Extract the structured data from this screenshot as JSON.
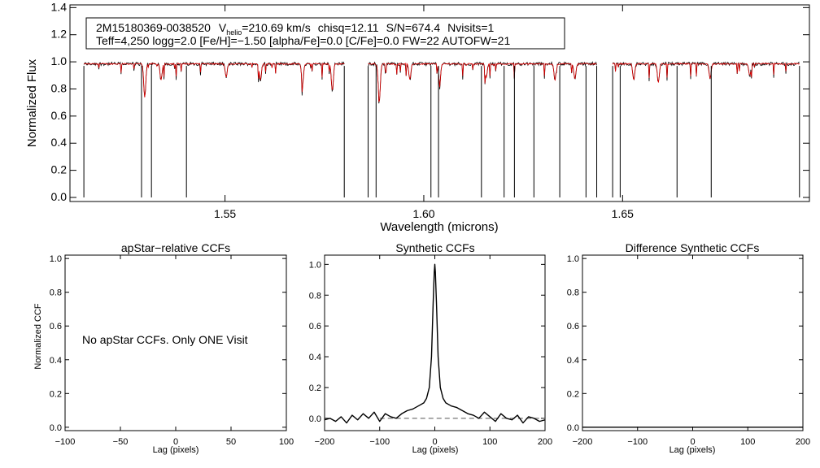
{
  "info_box": {
    "line1": {
      "star_id": "2M15180369-0038520",
      "vhelio_prefix": "V",
      "vhelio_sub": "helio",
      "vhelio_value": "=210.69 km/s",
      "chisq": "chisq=12.11",
      "snr": "S/N=674.4",
      "nvisits": "Nvisits=1"
    },
    "line2": "Teff=4,250 logg=2.0 [Fe/H]=−1.50 [alpha/Fe]=0.0 [C/Fe]=0.0 FW=22 AUTOFW=21"
  },
  "no_ccf_message": "No apStar CCFs.  Only ONE Visit",
  "colors": {
    "observed": "#000000",
    "model": "#dd0000",
    "zero_line": "#555555"
  },
  "chart_data": [
    {
      "type": "line",
      "panel": "spectrum",
      "xlabel": "Wavelength (microns)",
      "ylabel": "Normalized Flux",
      "xlim": [
        1.511,
        1.697
      ],
      "ylim": [
        -0.03,
        1.42
      ],
      "xticks": [
        1.55,
        1.6,
        1.65
      ],
      "xtick_labels": [
        "1.55",
        "1.60",
        "1.65"
      ],
      "yticks": [
        0,
        0.2,
        0.4,
        0.6,
        0.8,
        1.0,
        1.2,
        1.4
      ],
      "ytick_labels": [
        "0.0",
        "0.2",
        "0.4",
        "0.6",
        "0.8",
        "1.0",
        "1.2",
        "1.4"
      ],
      "chips": [
        [
          1.5145,
          1.58
        ],
        [
          1.586,
          1.6435
        ],
        [
          1.6475,
          1.6945
        ]
      ],
      "chip_edges": [
        1.5145,
        1.58,
        1.586,
        1.6435,
        1.6475,
        1.6945
      ],
      "bad_pixels": [
        1.529,
        1.5315,
        1.5403,
        1.588,
        1.6018,
        1.6037,
        1.6145,
        1.6202,
        1.6228,
        1.6277,
        1.6342,
        1.6408,
        1.6494,
        1.6637,
        1.6723
      ],
      "absorption_lines": [
        [
          1.5298,
          0.25
        ],
        [
          1.5339,
          0.12
        ],
        [
          1.5503,
          0.1
        ],
        [
          1.5589,
          0.12
        ],
        [
          1.5695,
          0.15
        ],
        [
          1.577,
          0.2
        ],
        [
          1.5888,
          0.28
        ],
        [
          1.5965,
          0.12
        ],
        [
          1.604,
          0.14
        ],
        [
          1.6157,
          0.1
        ],
        [
          1.633,
          0.12
        ],
        [
          1.638,
          0.11
        ],
        [
          1.6528,
          0.12
        ],
        [
          1.659,
          0.14
        ],
        [
          1.672,
          0.11
        ],
        [
          1.682,
          0.09
        ]
      ],
      "series": [
        {
          "values": "observed flux"
        },
        {
          "values": "model flux"
        }
      ]
    },
    {
      "type": "line",
      "panel": "apstar",
      "title": "apStar−relative CCFs",
      "xlabel": "Lag (pixels)",
      "ylabel": "Normalized CCF",
      "xlim": [
        -100,
        100
      ],
      "ylim": [
        -0.02,
        1.02
      ],
      "xticks": [
        -100,
        -50,
        0,
        50,
        100
      ],
      "xtick_labels": [
        "−100",
        "−50",
        "0",
        "50",
        "100"
      ],
      "yticks": [
        0,
        0.2,
        0.4,
        0.6,
        0.8,
        1.0
      ],
      "ytick_labels": [
        "0.0",
        "0.2",
        "0.4",
        "0.6",
        "0.8",
        "1.0"
      ]
    },
    {
      "type": "line",
      "panel": "synthetic",
      "title": "Synthetic CCFs",
      "xlabel": "Lag (pixels)",
      "xlim": [
        -200,
        200
      ],
      "ylim": [
        -0.08,
        1.06
      ],
      "xticks": [
        -200,
        -100,
        0,
        100,
        200
      ],
      "xtick_labels": [
        "−200",
        "−100",
        "0",
        "100",
        "200"
      ],
      "yticks": [
        0,
        0.2,
        0.4,
        0.6,
        0.8,
        1.0
      ],
      "ytick_labels": [
        "0.0",
        "0.2",
        "0.4",
        "0.6",
        "0.8",
        "1.0"
      ],
      "x": [
        -200,
        -190,
        -180,
        -170,
        -160,
        -150,
        -140,
        -130,
        -120,
        -110,
        -100,
        -90,
        -80,
        -70,
        -60,
        -50,
        -40,
        -30,
        -20,
        -15,
        -10,
        -6,
        -3,
        -1,
        0,
        1,
        3,
        6,
        10,
        15,
        20,
        30,
        40,
        50,
        60,
        70,
        80,
        90,
        100,
        110,
        120,
        130,
        140,
        150,
        160,
        170,
        180,
        190,
        200
      ],
      "values": [
        -0.01,
        0.0,
        -0.02,
        0.01,
        -0.03,
        0.02,
        -0.01,
        0.03,
        0.0,
        0.04,
        -0.02,
        0.03,
        0.01,
        0.0,
        0.03,
        0.05,
        0.06,
        0.08,
        0.1,
        0.13,
        0.2,
        0.4,
        0.75,
        0.95,
        1.0,
        0.95,
        0.75,
        0.4,
        0.2,
        0.13,
        0.1,
        0.08,
        0.07,
        0.05,
        0.03,
        0.02,
        0.0,
        0.04,
        0.01,
        -0.02,
        0.03,
        0.0,
        -0.01,
        0.02,
        -0.03,
        0.01,
        0.0,
        -0.02,
        -0.01
      ],
      "zero_line_y": 0.0,
      "zero_line_x": [
        -100,
        200
      ]
    },
    {
      "type": "line",
      "panel": "difference",
      "title": "Difference Synthetic CCFs",
      "xlabel": "Lag (pixels)",
      "xlim": [
        -200,
        200
      ],
      "ylim": [
        -0.02,
        1.02
      ],
      "xticks": [
        -200,
        -100,
        0,
        100,
        200
      ],
      "xtick_labels": [
        "−200",
        "−100",
        "0",
        "100",
        "200"
      ],
      "yticks": [
        0,
        0.2,
        0.4,
        0.6,
        0.8,
        1.0
      ],
      "ytick_labels": [
        "0.0",
        "0.2",
        "0.4",
        "0.6",
        "0.8",
        "1.0"
      ],
      "x": [
        -200,
        200
      ],
      "values": [
        0.0,
        0.0
      ]
    }
  ]
}
